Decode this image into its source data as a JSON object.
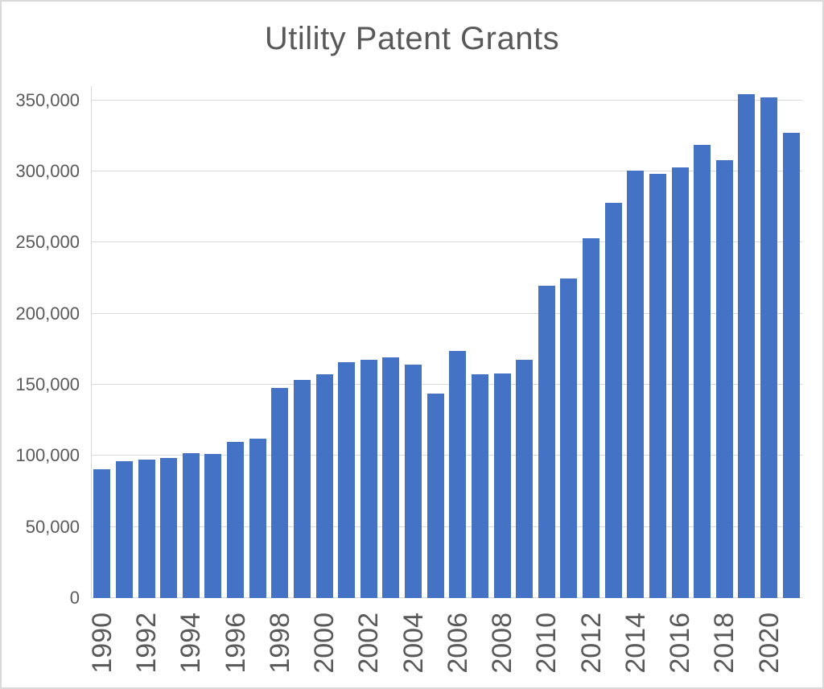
{
  "chart_data": {
    "type": "bar",
    "title": "Utility Patent Grants",
    "xlabel": "",
    "ylabel": "",
    "categories": [
      "1990",
      "1991",
      "1992",
      "1993",
      "1994",
      "1995",
      "1996",
      "1997",
      "1998",
      "1999",
      "2000",
      "2001",
      "2002",
      "2003",
      "2004",
      "2005",
      "2006",
      "2007",
      "2008",
      "2009",
      "2010",
      "2011",
      "2012",
      "2013",
      "2014",
      "2015",
      "2016",
      "2017",
      "2018",
      "2019",
      "2020",
      "2021"
    ],
    "values": [
      90365,
      96511,
      97444,
      98342,
      101676,
      101419,
      109645,
      111983,
      147517,
      153485,
      157494,
      166035,
      167331,
      169023,
      164290,
      143806,
      173772,
      157282,
      157772,
      167349,
      219614,
      224505,
      253155,
      277835,
      300678,
      298407,
      303049,
      318829,
      307759,
      354430,
      352013,
      327307
    ],
    "ylim": [
      0,
      360000
    ],
    "yticks": [
      {
        "value": 0,
        "label": "0"
      },
      {
        "value": 50000,
        "label": "50,000"
      },
      {
        "value": 100000,
        "label": "100,000"
      },
      {
        "value": 150000,
        "label": "150,000"
      },
      {
        "value": 200000,
        "label": "200,000"
      },
      {
        "value": 250000,
        "label": "250,000"
      },
      {
        "value": 300000,
        "label": "300,000"
      },
      {
        "value": 350000,
        "label": "350,000"
      }
    ],
    "x_tick_labels_shown": [
      "1990",
      "1992",
      "1994",
      "1996",
      "1998",
      "2000",
      "2002",
      "2004",
      "2006",
      "2008",
      "2010",
      "2012",
      "2014",
      "2016",
      "2018",
      "2020"
    ],
    "grid": "horizontal",
    "legend": "none",
    "colors": {
      "bar": "#4472C4",
      "gridline": "#D9D9D9",
      "axis_line": "#D9D9D9",
      "tick_label": "#595959",
      "title": "#595959",
      "background": "#FFFFFF",
      "border": "#D9D9D9"
    }
  }
}
